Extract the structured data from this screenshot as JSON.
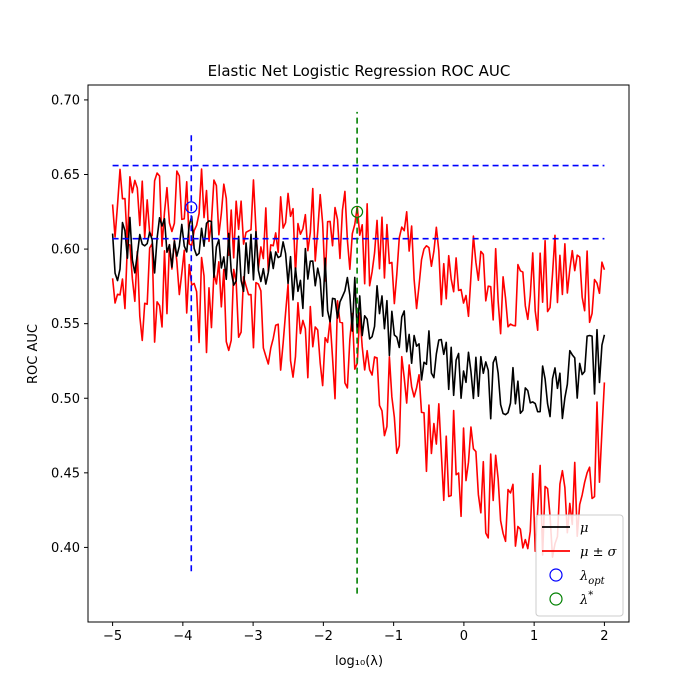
{
  "chart_data": {
    "type": "line",
    "title": "Elastic Net Logistic Regression ROC AUC",
    "xlabel": "log₁₀(λ)",
    "ylabel": "ROC AUC",
    "xlim": [
      -5.35,
      2.35
    ],
    "ylim": [
      0.35,
      0.71
    ],
    "x_ticks": [
      -5,
      -4,
      -3,
      -2,
      -1,
      0,
      1,
      2
    ],
    "x_tick_labels": [
      "−5",
      "−4",
      "−3",
      "−2",
      "−1",
      "0",
      "1",
      "2"
    ],
    "y_ticks": [
      0.4,
      0.45,
      0.5,
      0.55,
      0.6,
      0.65,
      0.7
    ],
    "y_tick_labels": [
      "0.40",
      "0.45",
      "0.50",
      "0.55",
      "0.60",
      "0.65",
      "0.70"
    ],
    "grid": false,
    "legend_position": "lower right",
    "x_range": [
      -5,
      2
    ],
    "n_points": 200,
    "colors": {
      "mean": "#000000",
      "band": "#ff0000",
      "opt": "#0000ff",
      "star": "#008000"
    },
    "series": [
      {
        "name": "μ",
        "role": "mean",
        "anchors": [
          [
            -5.0,
            0.597
          ],
          [
            -4.5,
            0.605
          ],
          [
            -4.0,
            0.603
          ],
          [
            -3.5,
            0.597
          ],
          [
            -3.0,
            0.592
          ],
          [
            -2.5,
            0.585
          ],
          [
            -2.0,
            0.575
          ],
          [
            -1.5,
            0.565
          ],
          [
            -1.0,
            0.545
          ],
          [
            -0.5,
            0.53
          ],
          [
            0.0,
            0.515
          ],
          [
            0.5,
            0.505
          ],
          [
            1.0,
            0.5
          ],
          [
            1.5,
            0.51
          ],
          [
            2.0,
            0.53
          ]
        ],
        "noise": 0.022
      },
      {
        "name": "μ ± σ",
        "role": "upper",
        "anchors": [
          [
            -5.0,
            0.62
          ],
          [
            -4.5,
            0.628
          ],
          [
            -4.0,
            0.625
          ],
          [
            -3.5,
            0.622
          ],
          [
            -3.0,
            0.618
          ],
          [
            -2.5,
            0.615
          ],
          [
            -2.0,
            0.61
          ],
          [
            -1.5,
            0.605
          ],
          [
            -1.0,
            0.595
          ],
          [
            -0.5,
            0.59
          ],
          [
            0.0,
            0.58
          ],
          [
            0.5,
            0.575
          ],
          [
            1.0,
            0.57
          ],
          [
            1.5,
            0.585
          ],
          [
            2.0,
            0.578
          ]
        ],
        "noise": 0.032
      },
      {
        "name": "",
        "role": "lower",
        "anchors": [
          [
            -5.0,
            0.575
          ],
          [
            -4.5,
            0.57
          ],
          [
            -4.0,
            0.572
          ],
          [
            -3.5,
            0.56
          ],
          [
            -3.0,
            0.555
          ],
          [
            -2.5,
            0.548
          ],
          [
            -2.0,
            0.535
          ],
          [
            -1.5,
            0.525
          ],
          [
            -1.0,
            0.5
          ],
          [
            -0.5,
            0.475
          ],
          [
            0.0,
            0.45
          ],
          [
            0.5,
            0.435
          ],
          [
            1.0,
            0.425
          ],
          [
            1.5,
            0.43
          ],
          [
            2.0,
            0.48
          ]
        ],
        "noise": 0.035
      }
    ],
    "reference_lines": [
      {
        "orientation": "horizontal",
        "y": 0.656,
        "x_from": -5,
        "x_to": 2,
        "color": "#0000ff",
        "style": "dashed"
      },
      {
        "orientation": "horizontal",
        "y": 0.607,
        "x_from": -5,
        "x_to": 2,
        "color": "#0000ff",
        "style": "dashed"
      },
      {
        "orientation": "vertical",
        "x": -3.88,
        "y_from": 0.384,
        "y_to": 0.678,
        "color": "#0000ff",
        "style": "dashed"
      },
      {
        "orientation": "vertical",
        "x": -1.52,
        "y_from": 0.369,
        "y_to": 0.692,
        "color": "#008000",
        "style": "dashed"
      }
    ],
    "markers": [
      {
        "name": "λ_opt",
        "x": -3.88,
        "y": 0.628,
        "color": "#0000ff"
      },
      {
        "name": "λ*",
        "x": -1.52,
        "y": 0.625,
        "color": "#008000"
      }
    ],
    "legend": [
      {
        "label": "μ",
        "kind": "line",
        "color": "#000000"
      },
      {
        "label": "μ ± σ",
        "kind": "line",
        "color": "#ff0000"
      },
      {
        "label": "λ",
        "sub": "opt",
        "kind": "circle",
        "color": "#0000ff"
      },
      {
        "label": "λ",
        "sup": "*",
        "kind": "circle",
        "color": "#008000"
      }
    ]
  }
}
